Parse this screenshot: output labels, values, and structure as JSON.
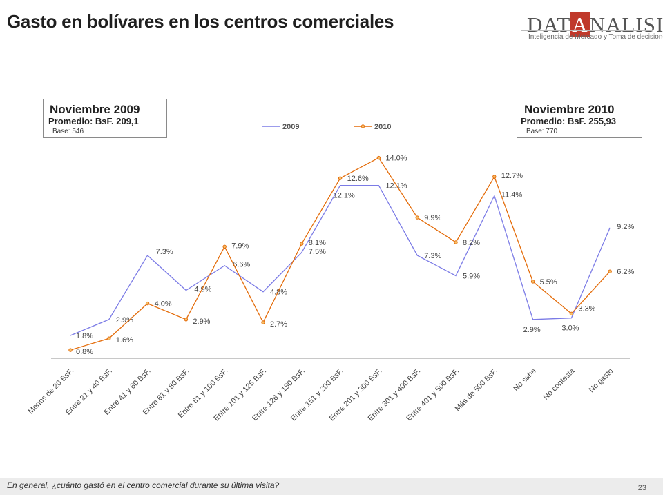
{
  "header": {
    "title": "Gasto en bolívares en los centros comerciales"
  },
  "logo": {
    "word_a": "DAT",
    "word_b": "A",
    "word_c": "NALISIS",
    "tagline": "Inteligencia de Mercado y Toma de decisiones"
  },
  "box2009": {
    "year": "Noviembre 2009",
    "promedio": "Promedio: BsF. 209,1",
    "base": "Base: 546"
  },
  "box2010": {
    "year": "Noviembre 2010",
    "promedio": "Promedio: BsF. 255,93",
    "base": "Base: 770"
  },
  "chart_data": {
    "type": "line",
    "categories": [
      "Menos de 20 BsF.",
      "Entre 21 y 40 BsF.",
      "Entre 41 y 60 BsF.",
      "Entre 61 y 80 BsF.",
      "Entre 81 y 100 BsF.",
      "Entre 101 y 125 BsF.",
      "Entre 126 y 150 BsF.",
      "Entre 151 y 200 BsF.",
      "Entre 201 y 300 BsF.",
      "Entre 301 y 400 BsF.",
      "Entre 401 y 500 BsF.",
      "Más de 500 BsF.",
      "No sabe",
      "No contesta",
      "No gasto"
    ],
    "series": [
      {
        "name": "2009",
        "color": "#7b7be6",
        "values": [
          1.8,
          2.9,
          7.3,
          4.9,
          6.6,
          4.8,
          7.5,
          12.1,
          12.1,
          7.3,
          5.9,
          11.4,
          2.9,
          3.0,
          9.2
        ],
        "labels": [
          "1.8%",
          "2.9%",
          "7.3%",
          "4.9%",
          "6.6%",
          "4.8%",
          "7.5%",
          "12.1%",
          "12.1%",
          "7.3%",
          "5.9%",
          "11.4%",
          "2.9%",
          "3.0%",
          "9.2%"
        ]
      },
      {
        "name": "2010",
        "color": "#e46c0a",
        "values": [
          0.8,
          1.6,
          4.0,
          2.9,
          7.9,
          2.7,
          8.1,
          12.6,
          14.0,
          9.9,
          8.2,
          12.7,
          5.5,
          3.3,
          6.2
        ],
        "labels": [
          "0.8%",
          "1.6%",
          "4.0%",
          "2.9%",
          "7.9%",
          "2.7%",
          "8.1%",
          "12.6%",
          "14.0%",
          "9.9%",
          "8.2%",
          "12.7%",
          "5.5%",
          "3.3%",
          "6.2%"
        ]
      }
    ],
    "title": "",
    "xlabel": "",
    "ylabel": "",
    "ylim": [
      0,
      14.5
    ],
    "grid": false,
    "legend": "top-center"
  },
  "footer": {
    "question": "En general, ¿cuánto gastó en el centro comercial durante su última visita?",
    "page": "23"
  }
}
